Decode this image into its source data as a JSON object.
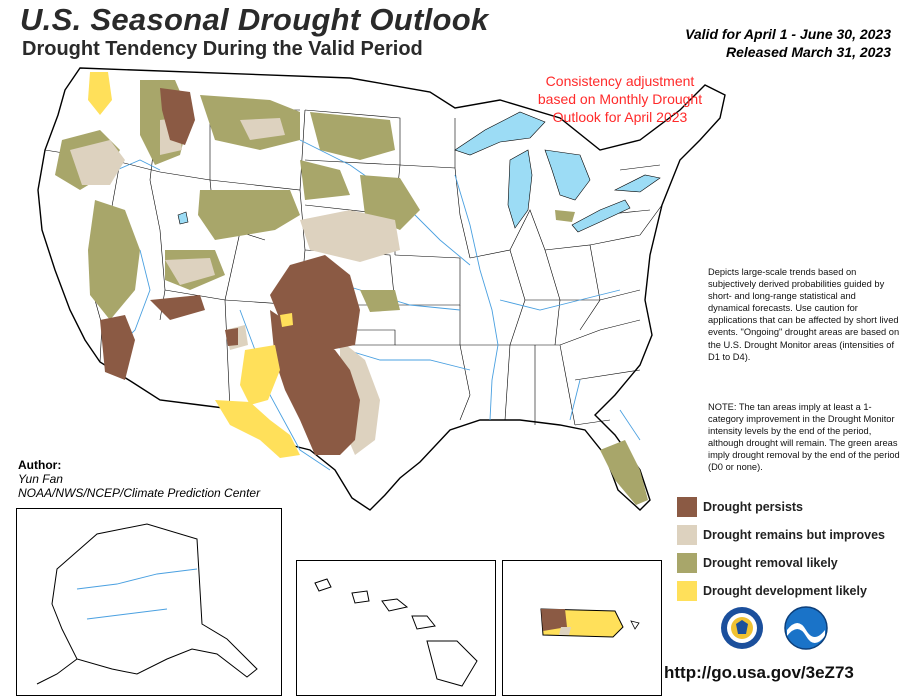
{
  "header": {
    "title": "U.S. Seasonal Drought Outlook",
    "subtitle": "Drought Tendency During the Valid Period",
    "valid": "Valid for April 1 - June 30, 2023",
    "released": "Released March 31, 2023"
  },
  "consistency_note": "Consistency adjustment based on Monthly Drought Outlook for April 2023",
  "description": "Depicts large-scale trends based on subjectively derived probabilities guided by short- and long-range statistical and dynamical forecasts. Use caution for applications that can be affected by short lived events. \"Ongoing\" drought areas are based on the U.S. Drought Monitor areas (intensities of D1 to D4).",
  "note": "NOTE: The tan areas imply at least a 1-category improvement in the Drought Monitor intensity levels by the end of the period, although drought will remain. The green areas imply drought removal by the end of the period (D0 or none).",
  "author": {
    "label": "Author:",
    "name": "Yun Fan",
    "org": "NOAA/NWS/NCEP/Climate Prediction Center"
  },
  "legend": [
    {
      "label": "Drought persists",
      "color": "#8b5a44"
    },
    {
      "label": "Drought remains but improves",
      "color": "#ddd2bf"
    },
    {
      "label": "Drought removal likely",
      "color": "#a8a66a"
    },
    {
      "label": "Drought development likely",
      "color": "#ffe05a"
    }
  ],
  "logos": [
    "doc-seal-icon",
    "noaa-logo-icon"
  ],
  "url": "http://go.usa.gov/3eZ73",
  "colors": {
    "lakes": "#9cdcf5",
    "rivers": "#4aa0e0",
    "borders": "#000000",
    "consistency_text": "#ff2a2a"
  }
}
